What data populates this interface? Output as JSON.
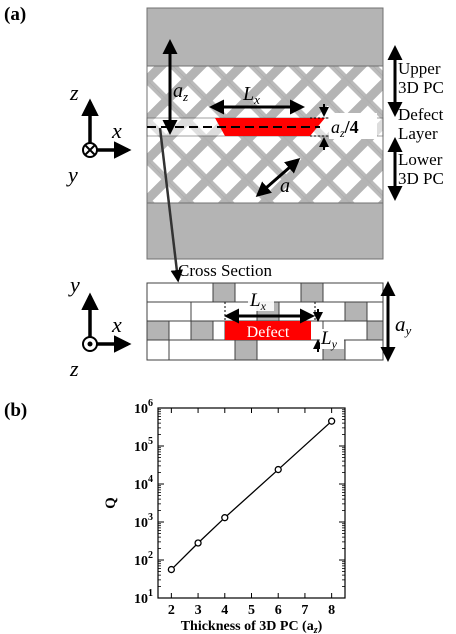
{
  "panel_a": {
    "label": "(a)",
    "axes_top": {
      "z": "z",
      "x": "x",
      "y": "y"
    },
    "axes_bottom": {
      "y": "y",
      "x": "x",
      "z": "z"
    },
    "labels": {
      "upper_line1": "Upper",
      "upper_line2": "3D PC",
      "defect_line1": "Defect",
      "defect_line2": "Layer",
      "lower_line1": "Lower",
      "lower_line2": "3D PC",
      "az": "a",
      "az_sub": "z",
      "lx": "L",
      "lx_sub": "x",
      "az4_a": "a",
      "az4_sub": "z",
      "az4_rest": "/4",
      "a": "a",
      "cross_section": "Cross Section",
      "defect": "Defect",
      "ly": "L",
      "ly_sub": "y",
      "ay": "a",
      "ay_sub": "y",
      "lx2": "L",
      "lx2_sub": "x"
    },
    "colors": {
      "rod": "#b4b4b4",
      "defect": "#ff0000",
      "edge": "#404040"
    }
  },
  "panel_b": {
    "label": "(b)",
    "chart_data": {
      "type": "line",
      "x": [
        2,
        3,
        4,
        6,
        8
      ],
      "values": [
        56,
        280,
        1300,
        24000,
        450000
      ],
      "xlabel": "Thickness of 3D PC (a",
      "xlabel_sub": "z",
      "xlabel_end": ")",
      "ylabel": "Q",
      "xlim": [
        1.5,
        8.5
      ],
      "ylim": [
        10,
        1000000
      ],
      "yscale": "log",
      "x_ticks": [
        "2",
        "3",
        "4",
        "5",
        "6",
        "7",
        "8"
      ],
      "y_ticks": [
        {
          "base": "10",
          "exp": "1"
        },
        {
          "base": "10",
          "exp": "2"
        },
        {
          "base": "10",
          "exp": "3"
        },
        {
          "base": "10",
          "exp": "4"
        },
        {
          "base": "10",
          "exp": "5"
        },
        {
          "base": "10",
          "exp": "6"
        }
      ],
      "grid": false,
      "marker": "open-circle"
    }
  }
}
